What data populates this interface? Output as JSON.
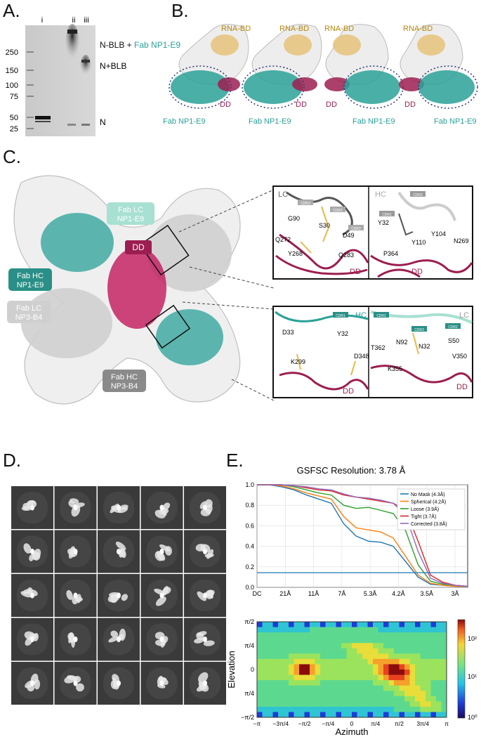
{
  "panels": {
    "a": {
      "letter": "A.",
      "lane_labels": [
        "i",
        "ii",
        "iii"
      ],
      "markers": [
        "250",
        "150",
        "100",
        "75",
        "50",
        "25"
      ],
      "band_labels": {
        "nblb_prefix": "N-BLB + ",
        "nblb_fab": "Fab NP1-E9",
        "nplus": "N+BLB",
        "n": "N"
      }
    },
    "b": {
      "letter": "B.",
      "models": [
        {
          "rna_label": "RNA-BD",
          "dd_label": "DD",
          "fab_label": "Fab NP1-E9"
        },
        {
          "rna_label": "RNA-BD",
          "dd_label": "DD",
          "fab_label": "Fab NP1-E9"
        },
        {
          "rna_label": "RNA-BD",
          "dd_label": "DD",
          "fab_label": "Fab NP1-E9"
        },
        {
          "rna_label": "RNA-BD",
          "dd_label": "DD",
          "fab_label": "Fab NP1-E9"
        }
      ]
    },
    "c": {
      "letter": "C.",
      "labels": {
        "fab_lc_e9": [
          "Fab LC",
          "NP1-E9"
        ],
        "dd": "DD",
        "fab_hc_e9": [
          "Fab HC",
          "NP1-E9"
        ],
        "fab_lc_b4": [
          "Fab LC",
          "NP3-B4"
        ],
        "fab_hc_b4": [
          "Fab HC",
          "NP3-B4"
        ]
      },
      "insets": {
        "top_left": {
          "chain": "LC",
          "cdrs": [
            "CDR3",
            "CDR1",
            "CDR2"
          ],
          "residues": [
            "G90",
            "S30",
            "D49",
            "Q272",
            "Y268",
            "Q283"
          ],
          "dd": "DD"
        },
        "top_right": {
          "chain": "HC",
          "cdrs": [
            "CDR3",
            "CDR1"
          ],
          "residues": [
            "Y32",
            "Y110",
            "Y104",
            "N269",
            "P364"
          ],
          "dd": "DD"
        },
        "bottom_left": {
          "chain": "HC",
          "cdrs": [
            "CDR1"
          ],
          "residues": [
            "D33",
            "Y32",
            "K299",
            "D348"
          ],
          "dd": "DD"
        },
        "bottom_right": {
          "chain": "LC",
          "cdrs": [
            "CDR1",
            "CDR3",
            "CDR2"
          ],
          "residues": [
            "N92",
            "S50",
            "T362",
            "N32",
            "V350",
            "K355"
          ],
          "dd": "DD"
        }
      }
    },
    "d": {
      "letter": "D.",
      "grid_rows": 5,
      "grid_cols": 5
    },
    "e": {
      "letter": "E.",
      "fsc_title": "GSFSC Resolution: 3.78 Å",
      "legend": [
        "No Mask (4.3Å)",
        "Spherical (4.2Å)",
        "Loose (3.9Å)",
        "Tight (3.7Å)",
        "Corrected (3.8Å)"
      ],
      "series_colors": [
        "#1f77b4",
        "#ff7f0e",
        "#2ca02c",
        "#d62728",
        "#9467bd"
      ],
      "fsc_y_ticks": [
        "1.0",
        "0.8",
        "0.6",
        "0.4",
        "0.2",
        "0.0"
      ],
      "fsc_x_ticks": [
        "DC",
        "21Å",
        "11Å",
        "7Å",
        "5.3Å",
        "4.2Å",
        "3.5Å",
        "3Å"
      ],
      "heat_y_ticks": [
        "π/2",
        "π/4",
        "0",
        "π/4",
        "−π/2"
      ],
      "heat_x_ticks": [
        "−π",
        "−3π/4",
        "−π/2",
        "−π/4",
        "0",
        "π/4",
        "π/2",
        "3π/4",
        "π"
      ],
      "heat_xlabel": "Azimuth",
      "heat_ylabel": "Elevation",
      "colorbar_ticks": [
        "10²",
        "10¹",
        "10⁰"
      ]
    }
  },
  "chart_data": [
    {
      "type": "line",
      "title": "GSFSC Resolution: 3.78 Å",
      "xlabel": "",
      "ylabel": "",
      "ylim": [
        0,
        1
      ],
      "x_tick_labels": [
        "DC",
        "21Å",
        "11Å",
        "7Å",
        "5.3Å",
        "4.2Å",
        "3.5Å",
        "3Å"
      ],
      "x": [
        0,
        0.02,
        0.04,
        0.06,
        0.08,
        0.1,
        0.12,
        0.14,
        0.16,
        0.18,
        0.2,
        0.22,
        0.24,
        0.26,
        0.28,
        0.3,
        0.32,
        0.34
      ],
      "threshold": 0.143,
      "series": [
        {
          "name": "No Mask (4.3Å)",
          "values": [
            1.0,
            1.0,
            0.98,
            0.95,
            0.9,
            0.86,
            0.82,
            0.62,
            0.5,
            0.45,
            0.44,
            0.4,
            0.25,
            0.1,
            0.03,
            0.02,
            0.01,
            0.01
          ]
        },
        {
          "name": "Spherical (4.2Å)",
          "values": [
            1.0,
            1.0,
            0.99,
            0.96,
            0.92,
            0.89,
            0.86,
            0.69,
            0.58,
            0.56,
            0.54,
            0.48,
            0.3,
            0.12,
            0.04,
            0.02,
            0.01,
            0.01
          ]
        },
        {
          "name": "Loose (3.9Å)",
          "values": [
            1.0,
            1.0,
            1.0,
            0.98,
            0.95,
            0.92,
            0.9,
            0.8,
            0.77,
            0.78,
            0.75,
            0.72,
            0.55,
            0.22,
            0.06,
            0.03,
            0.02,
            0.01
          ]
        },
        {
          "name": "Tight (3.7Å)",
          "values": [
            1.0,
            1.0,
            1.0,
            0.99,
            0.97,
            0.95,
            0.94,
            0.9,
            0.88,
            0.86,
            0.84,
            0.82,
            0.75,
            0.45,
            0.12,
            0.05,
            0.02,
            0.01
          ]
        },
        {
          "name": "Corrected (3.8Å)",
          "values": [
            1.0,
            1.0,
            1.0,
            0.99,
            0.98,
            0.96,
            0.95,
            0.91,
            0.88,
            0.87,
            0.85,
            0.82,
            0.7,
            0.35,
            0.09,
            0.04,
            0.02,
            0.01
          ]
        }
      ]
    },
    {
      "type": "heatmap",
      "title": "",
      "xlabel": "Azimuth",
      "ylabel": "Elevation",
      "xlim": [
        -3.1416,
        3.1416
      ],
      "ylim": [
        -1.5708,
        1.5708
      ],
      "x_tick_labels": [
        "−π",
        "−3π/4",
        "−π/2",
        "−π/4",
        "0",
        "π/4",
        "π/2",
        "3π/4",
        "π"
      ],
      "y_tick_labels": [
        "π/2",
        "π/4",
        "0",
        "π/4",
        "−π/2"
      ],
      "colorbar": {
        "scale": "log",
        "ticks": [
          "10²",
          "10¹",
          "10⁰"
        ]
      },
      "hotspots": [
        {
          "azimuth": -1.57,
          "elevation": 0.0,
          "level": "high"
        },
        {
          "azimuth": 1.57,
          "elevation": 0.0,
          "level": "high"
        }
      ]
    }
  ]
}
